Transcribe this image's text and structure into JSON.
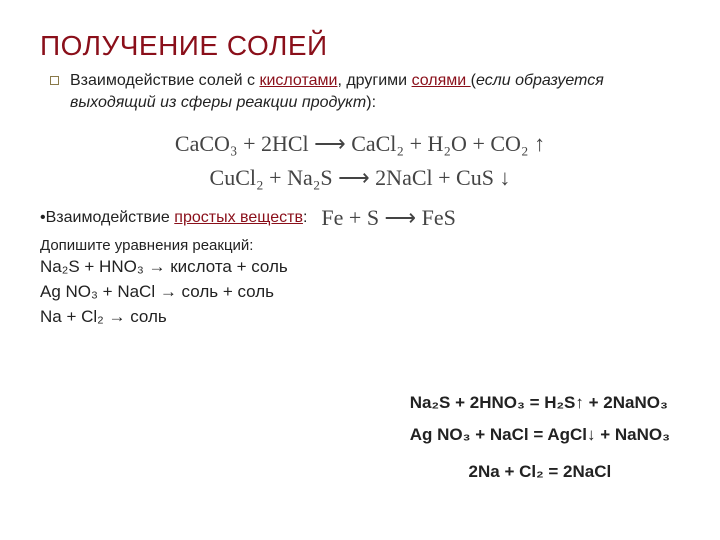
{
  "title": "ПОЛУЧЕНИЕ СОЛЕЙ",
  "intro": {
    "prefix": "Взаимодействие солей с ",
    "kw1": "кислотами",
    "mid": ", другими ",
    "kw2": "солями ",
    "tail_open": "(",
    "tail_ital": "если образуется выходящий из сферы реакции продукт",
    "tail_close": "):"
  },
  "eq1": "CaCO₃ + 2HCl ⟶ CaCl₂ + H₂O + CO₂ ↑",
  "eq2": "CuCl₂ + Na₂S ⟶ 2NaCl + CuS ↓",
  "simple_label_prefix": "•Взаимодействие ",
  "simple_label_kw": "простых веществ",
  "simple_label_suffix": ":",
  "eq3": "Fe  +  S  ⟶  FeS",
  "task_label": "Допишите уравнения реакций:",
  "task1": "Na₂S     +   HNO₃  →  кислота  + соль",
  "task2": "Ag NO₃   +   NaCl   →   соль   + соль",
  "task3": "Na   +   Cl₂   →   соль",
  "ans1": "Na₂S  +   2HNO₃  =  H₂S↑   +   2NaNO₃",
  "ans2": "Ag NO₃   +   NaCl  =  AgCl↓   +   NaNO₃",
  "ans3": "2Na   +   Cl₂  =   2NaCl"
}
